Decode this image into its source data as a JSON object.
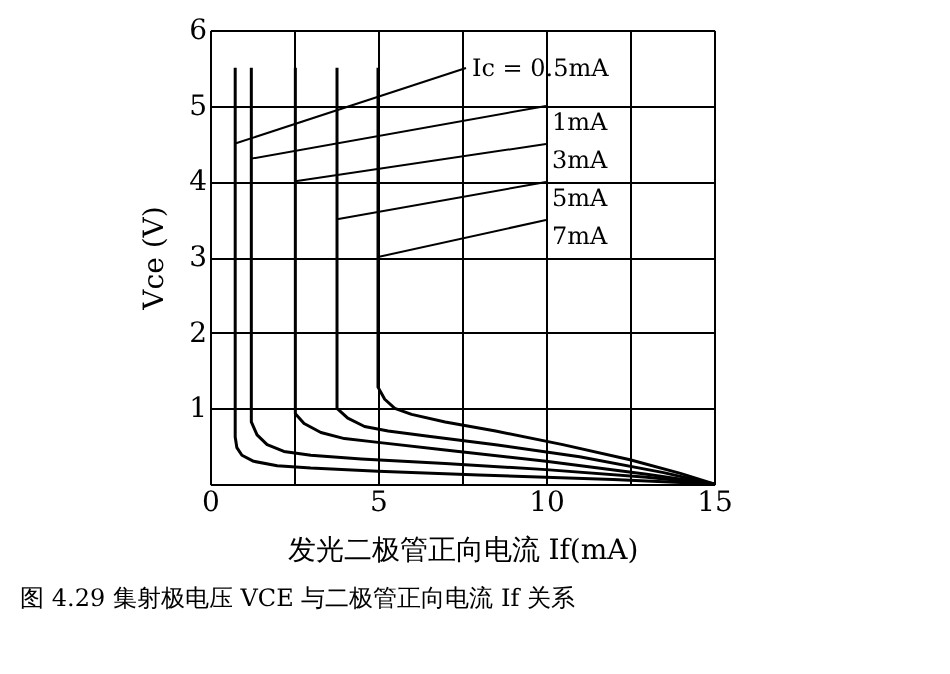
{
  "chart_data": {
    "type": "line",
    "xlabel": "发光二极管正向电流 If(mA)",
    "ylabel": "Vce (V)",
    "xlim": [
      0,
      15
    ],
    "xticks": [
      0,
      {
        "value": 2.5,
        "label": null
      },
      5,
      {
        "value": 7.5,
        "label": null
      },
      10,
      {
        "value": 12.5,
        "label": null
      },
      15
    ],
    "ylim": [
      0,
      6
    ],
    "yticks": [
      1,
      2,
      3,
      4,
      5,
      6
    ],
    "grid": true,
    "marker": "none",
    "line_style": "solid",
    "series": [
      {
        "color": "#000000",
        "x": [
          0.75,
          0.75,
          0.8,
          0.95,
          1.3,
          2.0,
          3.0,
          5.0,
          8.0,
          12.0,
          15.0
        ],
        "values": [
          5.5,
          0.62,
          0.48,
          0.38,
          0.3,
          0.24,
          0.21,
          0.17,
          0.12,
          0.06,
          0.0
        ]
      },
      {
        "color": "#000000",
        "x": [
          1.23,
          1.23,
          1.4,
          1.7,
          2.2,
          3.0,
          4.5,
          7.0,
          10.0,
          13.0,
          15.0
        ],
        "values": [
          5.5,
          0.82,
          0.65,
          0.52,
          0.43,
          0.38,
          0.33,
          0.27,
          0.19,
          0.09,
          0.0
        ]
      },
      {
        "color": "#000000",
        "x": [
          2.54,
          2.54,
          2.8,
          3.3,
          4.0,
          5.0,
          7.0,
          10.0,
          13.0,
          15.0
        ],
        "values": [
          5.5,
          0.93,
          0.8,
          0.68,
          0.6,
          0.55,
          0.45,
          0.3,
          0.13,
          0.0
        ]
      },
      {
        "color": "#000000",
        "x": [
          3.78,
          3.78,
          4.1,
          4.6,
          5.3,
          6.5,
          8.5,
          11.0,
          13.5,
          15.0
        ],
        "values": [
          5.5,
          1.0,
          0.87,
          0.76,
          0.7,
          0.63,
          0.52,
          0.36,
          0.15,
          0.0
        ]
      },
      {
        "color": "#000000",
        "x": [
          5.0,
          5.0,
          5.2,
          5.5,
          6.0,
          7.0,
          8.5,
          10.5,
          12.5,
          14.0,
          15.0
        ],
        "values": [
          5.5,
          1.28,
          1.12,
          1.0,
          0.92,
          0.82,
          0.7,
          0.52,
          0.32,
          0.14,
          0.0
        ]
      }
    ],
    "annotations": [
      {
        "text": "Ic = 0.5mA",
        "x": 0.75,
        "y": 4.5
      },
      {
        "text": "1mA",
        "x": 1.23,
        "y": 4.3
      },
      {
        "text": "3mA",
        "x": 2.54,
        "y": 4.0
      },
      {
        "text": "5mA",
        "x": 3.78,
        "y": 3.5
      },
      {
        "text": "7mA",
        "x": 5.0,
        "y": 3.0
      },
      "图 4.29 集射极电压 VCE 与二极管正向电流 If 关系"
    ]
  }
}
